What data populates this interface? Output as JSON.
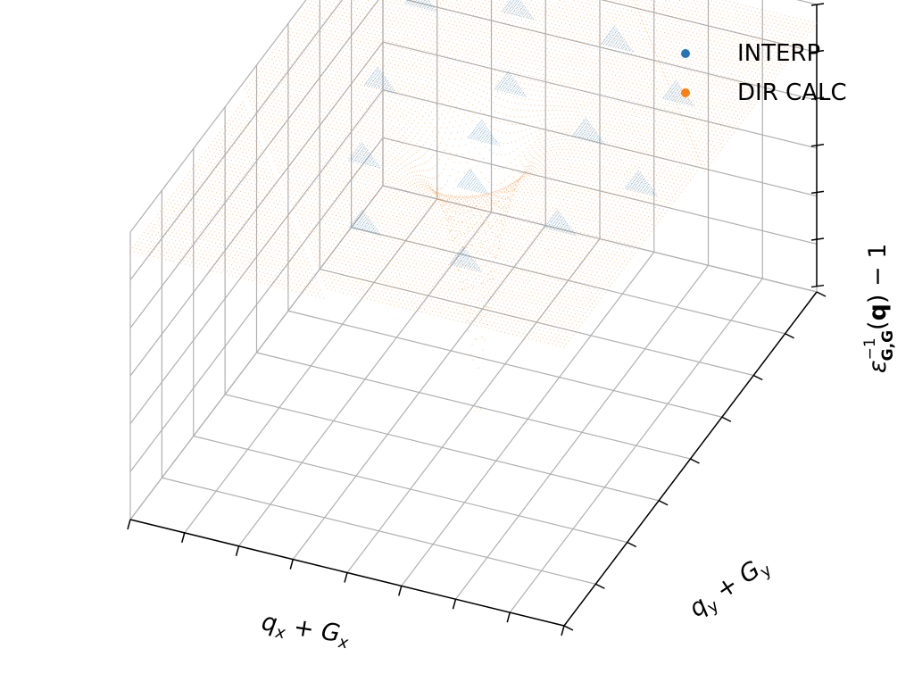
{
  "chart_data": {
    "type": "scatter",
    "projection": "3d",
    "title": "",
    "xlabel": "q_x + G_x",
    "ylabel": "q_y + G_y",
    "zlabel": "ε^{-1}_{G,G}(q) − 1",
    "xticklabels": [],
    "yticklabels": [],
    "zticklabels": [],
    "grid": true,
    "legend_placement": "top-right",
    "series": [
      {
        "name": "INTERP",
        "color": "#1f77b4",
        "marker": "point"
      },
      {
        "name": "DIR CALC",
        "color": "#ff7f0e",
        "marker": "point"
      }
    ]
  },
  "legend": {
    "items": [
      {
        "label": "INTERP",
        "color": "#1f77b4"
      },
      {
        "label": "DIR CALC",
        "color": "#ff7f0e"
      }
    ]
  },
  "axes": {
    "x_label": {
      "base": "q",
      "base_sub": "x",
      "plus": " + ",
      "term": "G",
      "term_sub": "x"
    },
    "y_label": {
      "base": "q",
      "base_sub": "y",
      "plus": " + ",
      "term": "G",
      "term_sub": "y"
    },
    "z_label": {
      "eps": "ε",
      "eps_sup": "−1",
      "eps_sub": "G,G",
      "open": "(",
      "q": "q",
      "close": ")",
      "minus": " − 1"
    }
  }
}
